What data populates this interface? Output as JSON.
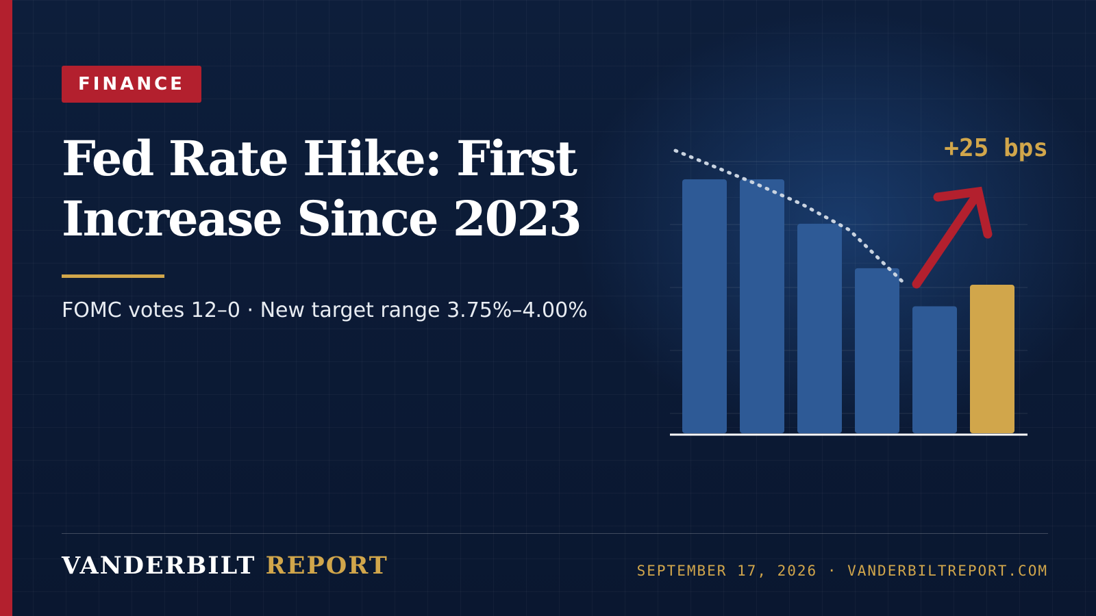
{
  "tag": {
    "label": "FINANCE"
  },
  "headline": {
    "line1": "Fed Rate Hike: First",
    "line2": "Increase Since 2023"
  },
  "subhead": "FOMC votes 12–0 · New target range 3.75%–4.00%",
  "chart_data": {
    "type": "bar",
    "title": "",
    "xlabel": "",
    "ylabel": "",
    "categories": [
      "",
      "",
      "",
      "",
      "",
      ""
    ],
    "values": [
      100,
      100,
      82.5,
      65,
      50,
      58.5
    ],
    "ylim": [
      0,
      100
    ],
    "trend": "dashed declining line over first five bars, then red upward arrow",
    "annotation": "+25 bps",
    "colors": {
      "bar": "#2e5a96",
      "highlight": "#d1a64b",
      "trend": "#c9d3e0",
      "arrow": "#b3202e"
    }
  },
  "footer": {
    "brand_part1": "VANDERBILT",
    "brand_part2": "REPORT",
    "meta": "SEPTEMBER 17, 2026 · VANDERBILTREPORT.COM"
  }
}
